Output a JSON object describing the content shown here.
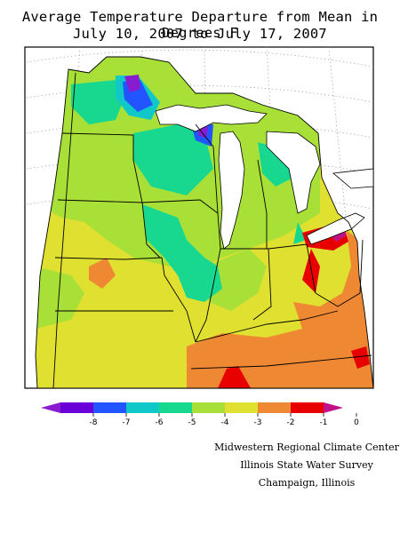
{
  "title": {
    "line1": "Average Temperature Departure from Mean in Degrees F",
    "line2": "July 10, 2007 to July 17, 2007"
  },
  "legend": {
    "ticks": [
      "-8",
      "-7",
      "-6",
      "-5",
      "-4",
      "-3",
      "-2",
      "-1",
      "0"
    ],
    "colors": [
      "#8a1ccf",
      "#6a00d8",
      "#2255ff",
      "#10c8c8",
      "#18d890",
      "#a8e038",
      "#e0e030",
      "#ef8833",
      "#e80000",
      "#c0108a"
    ]
  },
  "credits": {
    "line1": "Midwestern Regional Climate Center",
    "line2": "Illinois State Water Survey",
    "line3": "Champaign, Illinois"
  }
}
